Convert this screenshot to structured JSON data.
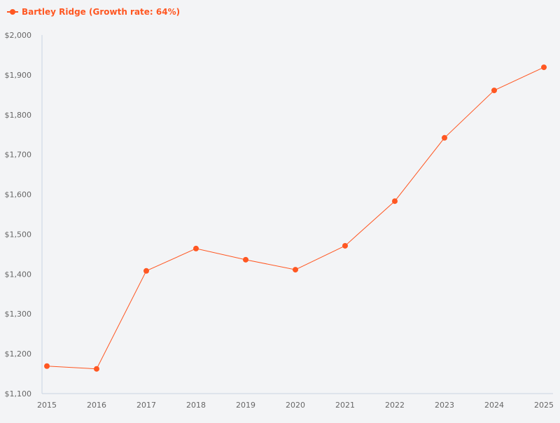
{
  "chart_data": {
    "type": "line",
    "title": "",
    "xlabel": "",
    "ylabel": "",
    "x": [
      "2015",
      "2016",
      "2017",
      "2018",
      "2019",
      "2020",
      "2021",
      "2022",
      "2023",
      "2024",
      "2025"
    ],
    "series": [
      {
        "name": "Bartley Ridge (Growth rate: 64%)",
        "values": [
          1169,
          1162,
          1408,
          1464,
          1436,
          1411,
          1471,
          1583,
          1742,
          1861,
          1919
        ],
        "color": "#ff5722"
      }
    ],
    "ylim": [
      1100,
      2000
    ],
    "yticks": [
      1100,
      1200,
      1300,
      1400,
      1500,
      1600,
      1700,
      1800,
      1900,
      2000
    ],
    "ytick_labels": [
      "$1,100",
      "$1,200",
      "$1,300",
      "$1,400",
      "$1,500",
      "$1,600",
      "$1,700",
      "$1,800",
      "$1,900",
      "$2,000"
    ],
    "grid": false,
    "legend_position": "top-left",
    "axis_color": "#c8d4e3",
    "background": "#f3f4f6"
  }
}
